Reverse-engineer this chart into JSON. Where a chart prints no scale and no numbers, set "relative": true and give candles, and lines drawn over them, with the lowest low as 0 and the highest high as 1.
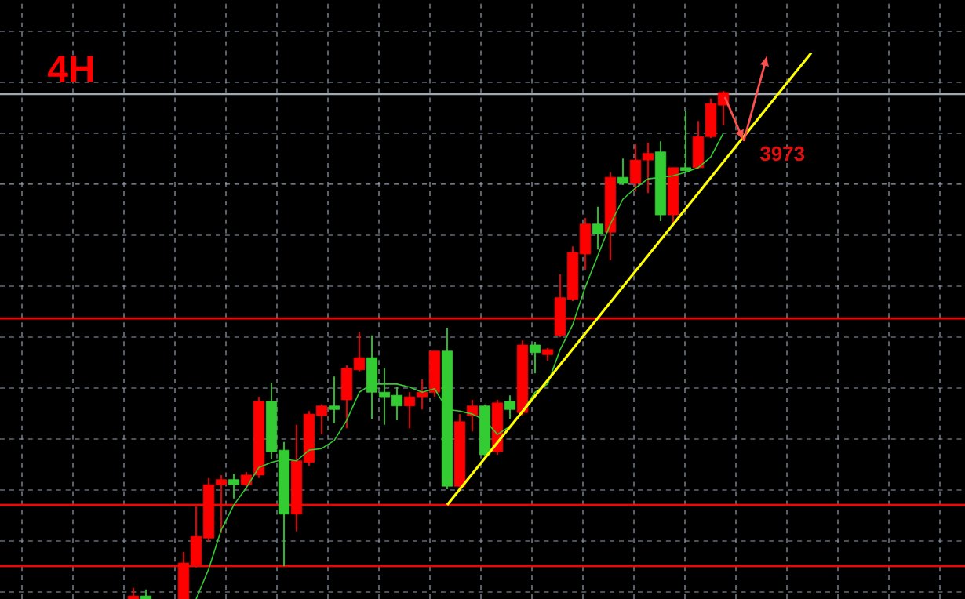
{
  "chart_data": {
    "type": "candlestick",
    "title": "4H",
    "relative": true,
    "grid": true,
    "categories": [
      null,
      null,
      null,
      null,
      null,
      null,
      null,
      null,
      null,
      null,
      null,
      null,
      null,
      null,
      null,
      null,
      null,
      null,
      null,
      null,
      null,
      null,
      null,
      null,
      null,
      null,
      null,
      null,
      null,
      null,
      null,
      null,
      null,
      null,
      null,
      null,
      null,
      null,
      null,
      null,
      null,
      null,
      null,
      null,
      null,
      null,
      null,
      null,
      null,
      null,
      null,
      null,
      null,
      null,
      null
    ],
    "ohlc": [
      [
        0,
        0.022,
        0,
        0.006
      ],
      [
        0.006,
        0.019,
        0,
        0
      ],
      null,
      null,
      [
        0,
        0.093,
        0,
        0.071
      ],
      [
        0.068,
        0.182,
        0.062,
        0.123
      ],
      [
        0.12,
        0.238,
        0.114,
        0.225
      ],
      [
        0.225,
        0.244,
        0.13,
        0.235
      ],
      [
        0.235,
        0.247,
        0.198,
        0.225
      ],
      [
        0.225,
        0.25,
        0.216,
        0.244
      ],
      [
        0.244,
        0.398,
        0.238,
        0.389
      ],
      [
        0.389,
        0.426,
        0.275,
        0.29
      ],
      [
        0.293,
        0.309,
        0.065,
        0.167
      ],
      [
        0.167,
        0.343,
        0.133,
        0.272
      ],
      [
        0.269,
        0.37,
        0.262,
        0.364
      ],
      [
        0.361,
        0.383,
        0.324,
        0.38
      ],
      [
        0.38,
        0.438,
        0.346,
        0.373
      ],
      [
        0.392,
        0.46,
        0.336,
        0.454
      ],
      [
        0.451,
        0.525,
        0.448,
        0.475
      ],
      [
        0.475,
        0.519,
        0.355,
        0.407
      ],
      [
        0.407,
        0.454,
        0.343,
        0.398
      ],
      [
        0.401,
        0.417,
        0.352,
        0.38
      ],
      [
        0.38,
        0.407,
        0.336,
        0.398
      ],
      [
        0.398,
        0.432,
        0.373,
        0.407
      ],
      [
        0.407,
        0.488,
        0.398,
        0.488
      ],
      [
        0.488,
        0.534,
        0.216,
        0.222
      ],
      [
        0.222,
        0.364,
        0.216,
        0.349
      ],
      [
        0.361,
        0.392,
        0.33,
        0.38
      ],
      [
        0.38,
        0.383,
        0.281,
        0.284
      ],
      [
        0.29,
        0.392,
        0.284,
        0.386
      ],
      [
        0.389,
        0.401,
        0.355,
        0.373
      ],
      [
        0.367,
        0.509,
        0.361,
        0.5
      ],
      [
        0.5,
        0.506,
        0.444,
        0.485
      ],
      [
        0.481,
        0.494,
        0.469,
        0.491
      ],
      [
        0.519,
        0.639,
        0.515,
        0.593
      ],
      [
        0.59,
        0.694,
        0.586,
        0.682
      ],
      [
        0.679,
        0.75,
        0.648,
        0.738
      ],
      [
        0.738,
        0.772,
        0.688,
        0.719
      ],
      [
        0.722,
        0.84,
        0.667,
        0.83
      ],
      [
        0.83,
        0.867,
        0.815,
        0.818
      ],
      [
        0.818,
        0.895,
        0.802,
        0.864
      ],
      [
        0.864,
        0.898,
        0.799,
        0.877
      ],
      [
        0.88,
        0.901,
        0.744,
        0.756
      ],
      [
        0.756,
        0.849,
        0.738,
        0.849
      ],
      [
        0.849,
        0.96,
        0.84,
        0.843
      ],
      [
        0.849,
        0.941,
        0.846,
        0.91
      ],
      [
        0.91,
        0.985,
        0.907,
        0.975
      ],
      [
        0.972,
        1,
        0.932,
        0.997
      ],
      null,
      null,
      null,
      null,
      null,
      null,
      null
    ],
    "colors": [
      "#ff0000",
      "#33cc33",
      null,
      null,
      "#ff0000",
      "#ff0000",
      "#ff0000",
      "#ff0000",
      "#33cc33",
      "#ff0000",
      "#ff0000",
      "#33cc33",
      "#33cc33",
      "#ff0000",
      "#ff0000",
      "#ff0000",
      "#33cc33",
      "#ff0000",
      "#ff0000",
      "#33cc33",
      "#33cc33",
      "#33cc33",
      "#ff0000",
      "#ff0000",
      "#ff0000",
      "#33cc33",
      "#ff0000",
      "#ff0000",
      "#33cc33",
      "#ff0000",
      "#33cc33",
      "#ff0000",
      "#33cc33",
      "#ff0000",
      "#ff0000",
      "#ff0000",
      "#ff0000",
      "#33cc33",
      "#ff0000",
      "#33cc33",
      "#ff0000",
      "#ff0000",
      "#33cc33",
      "#ff0000",
      "#33cc33",
      "#ff0000",
      "#ff0000",
      "#ff0000",
      null,
      null,
      null,
      null,
      null,
      null,
      null
    ],
    "series": [
      {
        "type": "line",
        "color": "#33cc33",
        "values": [
          null,
          null,
          null,
          null,
          null,
          0,
          0.059,
          0.136,
          0.185,
          0.219,
          0.259,
          0.269,
          0.275,
          0.272,
          0.293,
          0.296,
          0.312,
          0.352,
          0.407,
          0.423,
          0.423,
          0.423,
          0.417,
          0.407,
          0.414,
          0.373,
          0.37,
          0.364,
          0.352,
          0.324,
          0.34,
          0.37,
          0.407,
          0.423,
          0.491,
          0.54,
          0.614,
          0.676,
          0.738,
          0.787,
          0.809,
          0.827,
          0.83,
          0.833,
          0.84,
          0.849,
          0.87,
          0.917,
          null,
          null,
          null,
          null,
          null,
          null,
          null
        ]
      },
      {
        "type": "line",
        "color": "#ffff00",
        "values": [
          null,
          null,
          null,
          null,
          null,
          null,
          null,
          null,
          null,
          null,
          null,
          null,
          null,
          null,
          null,
          null,
          null,
          null,
          null,
          null,
          null,
          null,
          null,
          null,
          null,
          0.185,
          null,
          null,
          null,
          null,
          null,
          null,
          null,
          null,
          null,
          null,
          null,
          null,
          null,
          null,
          null,
          null,
          null,
          null,
          null,
          null,
          null,
          null,
          null,
          null,
          null,
          null,
          null,
          null,
          1.075
        ]
      }
    ],
    "ref_lines": [
      {
        "axis": "y",
        "value": 0.994,
        "color": "#a0a8b0"
      },
      {
        "axis": "y",
        "value": 0.552,
        "color": "#ff0000"
      },
      {
        "axis": "y",
        "value": 0.185,
        "color": "#ff0000"
      },
      {
        "axis": "y",
        "value": 0.065,
        "color": "#ff0000"
      }
    ],
    "annotations": [
      "3973"
    ]
  }
}
